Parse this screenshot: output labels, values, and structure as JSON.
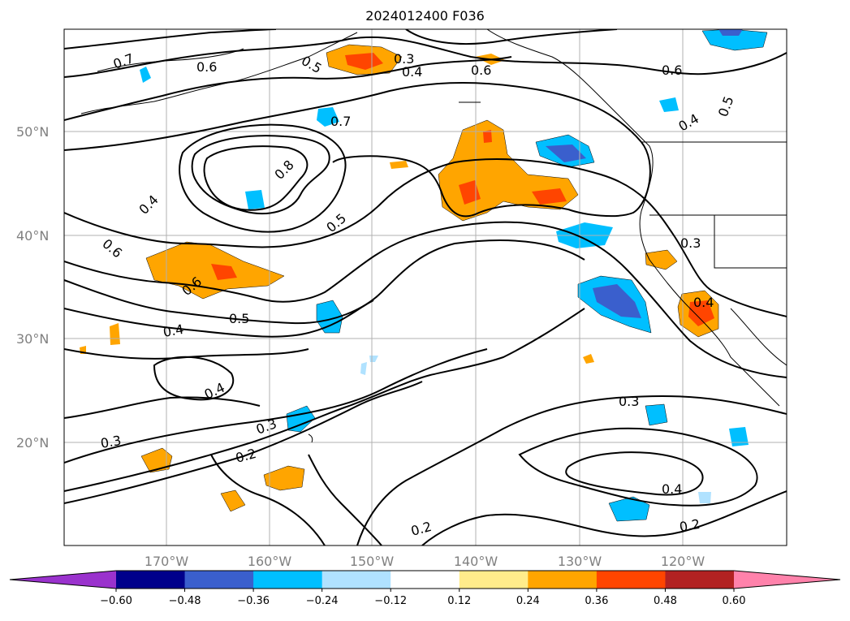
{
  "title": "2024012400 F036",
  "lat_labels": [
    "50°N",
    "40°N",
    "30°N",
    "20°N"
  ],
  "lon_labels": [
    "170°W",
    "160°W",
    "150°W",
    "140°W",
    "130°W",
    "120°W"
  ],
  "colorbar": {
    "ticks": [
      "−0.60",
      "−0.48",
      "−0.36",
      "−0.24",
      "−0.12",
      "0.12",
      "0.24",
      "0.36",
      "0.48",
      "0.60"
    ],
    "colors": [
      "#9a32cd",
      "#00008b",
      "#3a5fcd",
      "#00bfff",
      "#b0e2ff",
      "#ffffff",
      "#ffec8b",
      "#ffa500",
      "#ff4500",
      "#b22222",
      "#ff82ab"
    ]
  },
  "contour_labels": [
    "0.7",
    "0.6",
    "0.5",
    "0.3",
    "0.4",
    "0.6",
    "0.6",
    "0.5",
    "0.4",
    "0.7",
    "0.8",
    "0.4",
    "0.5",
    "0.6",
    "0.6",
    "0.5",
    "0.4",
    "0.4",
    "0.3",
    "0.3",
    "0.4",
    "0.3",
    "0.2",
    "0.3",
    "0.4",
    "0.2",
    "0.2"
  ]
}
